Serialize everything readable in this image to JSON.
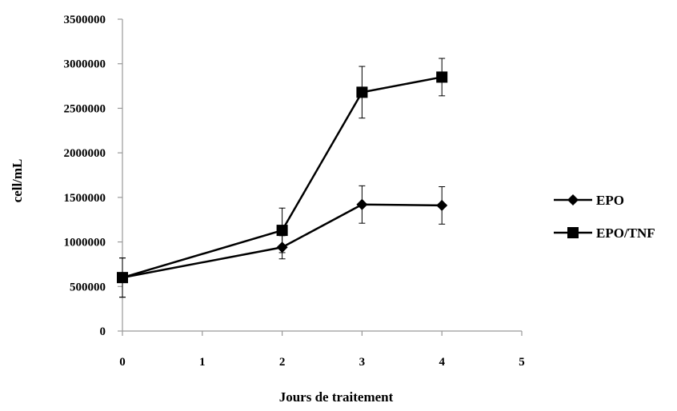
{
  "chart_data": {
    "type": "line",
    "title": "",
    "xlabel": "Jours de traitement",
    "ylabel": "cell/mL",
    "xlim": [
      0,
      5
    ],
    "ylim": [
      0,
      3500000
    ],
    "x_ticks": [
      "0",
      "1",
      "2",
      "3",
      "4",
      "5"
    ],
    "y_ticks": [
      "0",
      "500000",
      "1000000",
      "1500000",
      "2000000",
      "2500000",
      "3000000",
      "3500000"
    ],
    "grid": false,
    "legend_position": "right",
    "series": [
      {
        "name": "EPO",
        "marker": "diamond",
        "color": "#000000",
        "x": [
          0,
          2,
          3,
          4
        ],
        "y": [
          600000,
          940000,
          1420000,
          1410000
        ],
        "error": [
          220000,
          130000,
          210000,
          210000
        ]
      },
      {
        "name": "EPO/TNF",
        "marker": "square",
        "color": "#000000",
        "x": [
          0,
          2,
          3,
          4
        ],
        "y": [
          600000,
          1130000,
          2680000,
          2850000
        ],
        "error": [
          220000,
          250000,
          290000,
          210000
        ]
      }
    ]
  }
}
